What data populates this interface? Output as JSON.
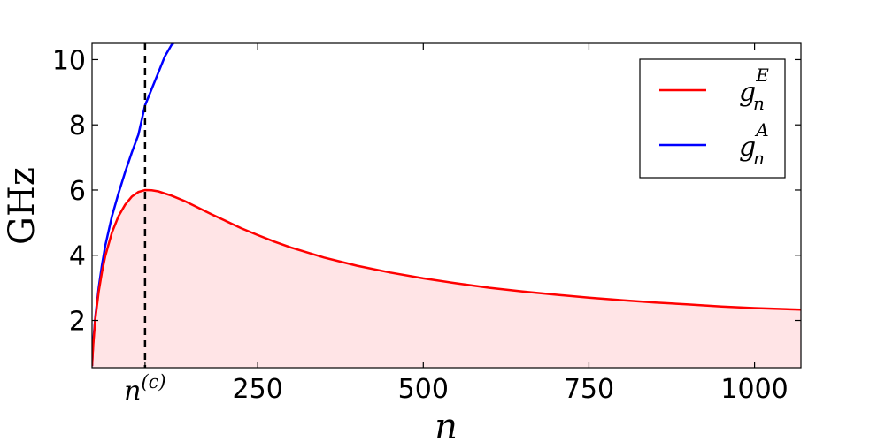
{
  "chart_data": {
    "type": "line",
    "xlabel": "n",
    "ylabel": "GHz",
    "xlim": [
      0,
      1070
    ],
    "ylim": [
      0.55,
      10.5
    ],
    "x_ticks": [
      250,
      500,
      750,
      1000
    ],
    "x_tick_labels": [
      "250",
      "500",
      "750",
      "1000"
    ],
    "y_ticks": [
      2,
      4,
      6,
      8,
      10
    ],
    "y_tick_labels": [
      "2",
      "4",
      "6",
      "8",
      "10"
    ],
    "grid": false,
    "legend_position": "top-right",
    "critical_point": {
      "x": 80,
      "label_base": "n",
      "label_sup": "(c)",
      "line_style": "dashed",
      "color": "#000000"
    },
    "series": [
      {
        "name_base": "g",
        "name_sub": "n",
        "name_sup": "E",
        "color": "#ff0000",
        "fill": "#ffe4e6",
        "x": [
          0,
          1,
          2,
          5,
          10,
          15,
          20,
          30,
          40,
          50,
          60,
          70,
          80,
          90,
          100,
          120,
          140,
          160,
          180,
          200,
          225,
          250,
          275,
          300,
          350,
          400,
          450,
          500,
          550,
          600,
          650,
          700,
          750,
          800,
          850,
          900,
          950,
          1000,
          1070
        ],
        "y": [
          0.6,
          0.95,
          1.3,
          2.05,
          2.88,
          3.48,
          3.98,
          4.7,
          5.2,
          5.55,
          5.8,
          5.94,
          6.0,
          5.99,
          5.96,
          5.83,
          5.66,
          5.46,
          5.26,
          5.07,
          4.83,
          4.62,
          4.42,
          4.24,
          3.93,
          3.68,
          3.47,
          3.29,
          3.14,
          3.0,
          2.89,
          2.79,
          2.7,
          2.62,
          2.55,
          2.49,
          2.43,
          2.38,
          2.33
        ]
      },
      {
        "name_base": "g",
        "name_sub": "n",
        "name_sup": "A",
        "color": "#0000ff",
        "x": [
          0,
          1,
          2,
          5,
          10,
          15,
          20,
          30,
          40,
          50,
          60,
          70,
          80,
          90,
          100,
          110,
          120,
          123
        ],
        "y": [
          0.6,
          1.0,
          1.4,
          2.1,
          3.0,
          3.7,
          4.3,
          5.2,
          5.9,
          6.55,
          7.15,
          7.7,
          8.6,
          9.1,
          9.6,
          10.1,
          10.45,
          10.5
        ]
      }
    ]
  }
}
